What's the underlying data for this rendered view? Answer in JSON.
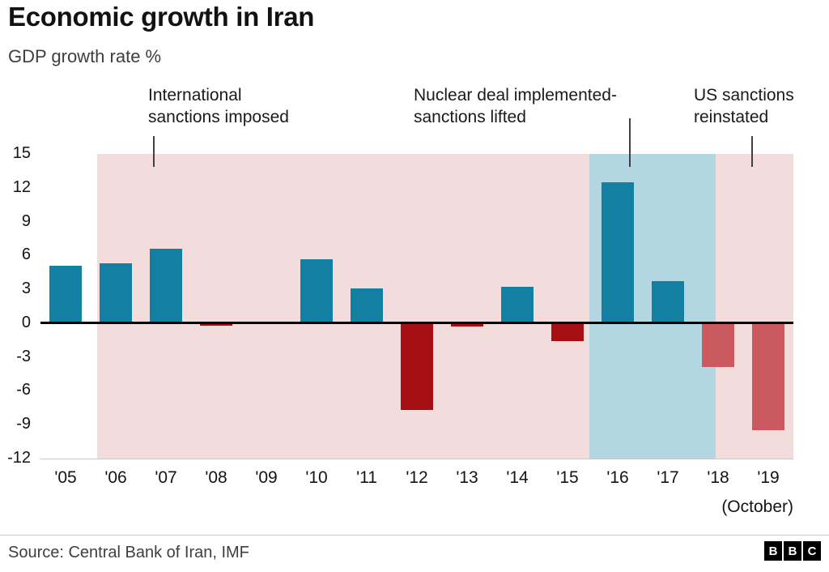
{
  "header": {
    "title": "Economic growth in Iran",
    "subtitle": "GDP growth rate %"
  },
  "annotations": [
    {
      "line1": "International",
      "line2": "sanctions imposed"
    },
    {
      "line1": "Nuclear deal implemented-",
      "line2": "sanctions lifted"
    },
    {
      "line1": "US sanctions",
      "line2": "reinstated"
    }
  ],
  "chart_data": {
    "type": "bar",
    "title": "Economic growth in Iran",
    "ylabel": "GDP growth rate %",
    "categories": [
      "'05",
      "'06",
      "'07",
      "'08",
      "'09",
      "'10",
      "'11",
      "'12",
      "'13",
      "'14",
      "'15",
      "'16",
      "'17",
      "'18",
      "'19"
    ],
    "values": [
      5.1,
      5.3,
      6.6,
      -0.2,
      0,
      5.7,
      3.1,
      -7.7,
      -0.3,
      3.2,
      -1.6,
      12.5,
      3.7,
      -3.9,
      -9.5
    ],
    "bar_colors": [
      "#1380a1",
      "#1380a1",
      "#1380a1",
      "#a50e13",
      "#1380a1",
      "#1380a1",
      "#1380a1",
      "#a50e13",
      "#a50e13",
      "#1380a1",
      "#a50e13",
      "#1380a1",
      "#1380a1",
      "#ca5a5f",
      "#ca5a5f"
    ],
    "y_ticks": [
      15,
      12,
      9,
      6,
      3,
      0,
      -3,
      -6,
      -9,
      -12
    ],
    "ylim": [
      -12,
      15
    ],
    "x_note": "(October)",
    "grid": false,
    "legend": "none",
    "regions": [
      {
        "name": "international-sanctions-period",
        "from": 0.075,
        "to": 0.729,
        "color": "#f2dcdc"
      },
      {
        "name": "sanctions-lifted-period",
        "from": 0.729,
        "to": 0.897,
        "color": "#b3d7e2"
      },
      {
        "name": "us-sanctions-reinstated-period",
        "from": 0.897,
        "to": 1.0,
        "color": "#f2dcdc"
      }
    ]
  },
  "footer": {
    "source": "Source: Central Bank of Iran, IMF",
    "logo": [
      "B",
      "B",
      "C"
    ]
  }
}
